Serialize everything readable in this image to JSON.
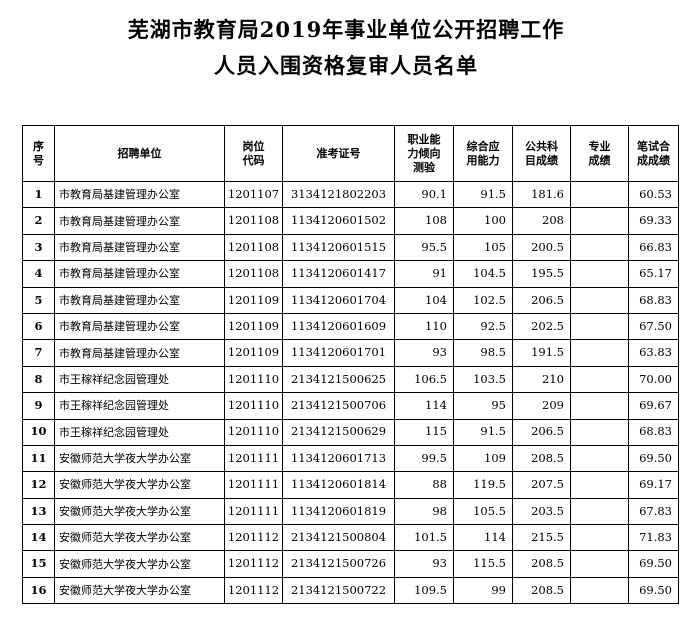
{
  "title": {
    "line1": "芜湖市教育局2019年事业单位公开招聘工作",
    "line2": "人员入围资格复审人员名单"
  },
  "table": {
    "headers": [
      {
        "lines": [
          "序",
          "号"
        ]
      },
      {
        "lines": [
          "招聘单位"
        ]
      },
      {
        "lines": [
          "岗位",
          "代码"
        ]
      },
      {
        "lines": [
          "准考证号"
        ]
      },
      {
        "lines": [
          "职业能",
          "力倾向",
          "测验"
        ]
      },
      {
        "lines": [
          "综合应",
          "用能力"
        ]
      },
      {
        "lines": [
          "公共科",
          "目成绩"
        ]
      },
      {
        "lines": [
          "专业",
          "成绩"
        ]
      },
      {
        "lines": [
          "笔试合",
          "成成绩"
        ]
      }
    ],
    "rows": [
      [
        "1",
        "市教育局基建管理办公室",
        "1201107",
        "3134121802203",
        "90.1",
        "91.5",
        "181.6",
        "",
        "60.53"
      ],
      [
        "2",
        "市教育局基建管理办公室",
        "1201108",
        "1134120601502",
        "108",
        "100",
        "208",
        "",
        "69.33"
      ],
      [
        "3",
        "市教育局基建管理办公室",
        "1201108",
        "1134120601515",
        "95.5",
        "105",
        "200.5",
        "",
        "66.83"
      ],
      [
        "4",
        "市教育局基建管理办公室",
        "1201108",
        "1134120601417",
        "91",
        "104.5",
        "195.5",
        "",
        "65.17"
      ],
      [
        "5",
        "市教育局基建管理办公室",
        "1201109",
        "1134120601704",
        "104",
        "102.5",
        "206.5",
        "",
        "68.83"
      ],
      [
        "6",
        "市教育局基建管理办公室",
        "1201109",
        "1134120601609",
        "110",
        "92.5",
        "202.5",
        "",
        "67.50"
      ],
      [
        "7",
        "市教育局基建管理办公室",
        "1201109",
        "1134120601701",
        "93",
        "98.5",
        "191.5",
        "",
        "63.83"
      ],
      [
        "8",
        "市王稼祥纪念园管理处",
        "1201110",
        "2134121500625",
        "106.5",
        "103.5",
        "210",
        "",
        "70.00"
      ],
      [
        "9",
        "市王稼祥纪念园管理处",
        "1201110",
        "2134121500706",
        "114",
        "95",
        "209",
        "",
        "69.67"
      ],
      [
        "10",
        "市王稼祥纪念园管理处",
        "1201110",
        "2134121500629",
        "115",
        "91.5",
        "206.5",
        "",
        "68.83"
      ],
      [
        "11",
        "安徽师范大学夜大学办公室",
        "1201111",
        "1134120601713",
        "99.5",
        "109",
        "208.5",
        "",
        "69.50"
      ],
      [
        "12",
        "安徽师范大学夜大学办公室",
        "1201111",
        "1134120601814",
        "88",
        "119.5",
        "207.5",
        "",
        "69.17"
      ],
      [
        "13",
        "安徽师范大学夜大学办公室",
        "1201111",
        "1134120601819",
        "98",
        "105.5",
        "203.5",
        "",
        "67.83"
      ],
      [
        "14",
        "安徽师范大学夜大学办公室",
        "1201112",
        "2134121500804",
        "101.5",
        "114",
        "215.5",
        "",
        "71.83"
      ],
      [
        "15",
        "安徽师范大学夜大学办公室",
        "1201112",
        "2134121500726",
        "93",
        "115.5",
        "208.5",
        "",
        "69.50"
      ],
      [
        "16",
        "安徽师范大学夜大学办公室",
        "1201112",
        "2134121500722",
        "109.5",
        "99",
        "208.5",
        "",
        "69.50"
      ]
    ]
  }
}
